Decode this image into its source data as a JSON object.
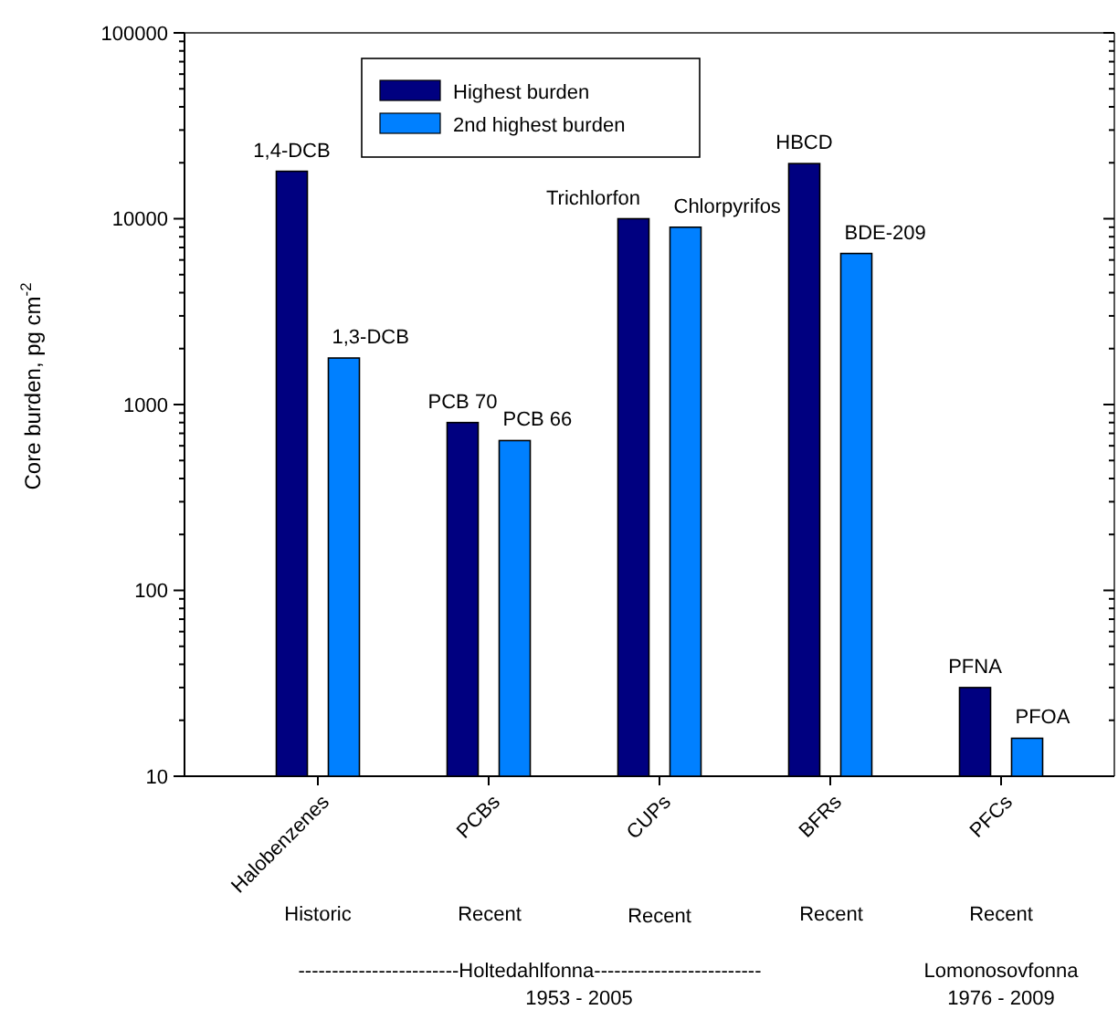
{
  "chart_data": {
    "type": "bar",
    "ylabel": "Core burden, pg cm$^{-2}$",
    "log": true,
    "ylim": [
      10,
      100000
    ],
    "yticks": [
      10,
      100,
      1000,
      10000,
      100000
    ],
    "legend": "top",
    "categories": [
      "Halobenzenes",
      "PCBs",
      "CUPs",
      "BFRs",
      "PFCs"
    ],
    "series": [
      {
        "name": "Highest burden",
        "color": "#000080",
        "values": [
          18000,
          800,
          10000,
          19800,
          30
        ]
      },
      {
        "name": "2nd highest burden",
        "color": "#0080ff",
        "values": [
          1780,
          640,
          9000,
          6500,
          16
        ]
      }
    ],
    "annotations": [
      "1,4-DCB",
      "1,3-DCB",
      "PCB 70",
      "PCB 66",
      "Trichlorfon",
      "Chlorpyrifos",
      "HBCD",
      "BDE-209",
      "PFNA",
      "PFOA",
      "Historic",
      "Recent",
      "Recent",
      "Recent",
      "Recent",
      "------------------------Holtedahlfonna-------------------------",
      "Lomonosovfonna",
      "1953 - 2005",
      "1976 - 2009"
    ]
  }
}
